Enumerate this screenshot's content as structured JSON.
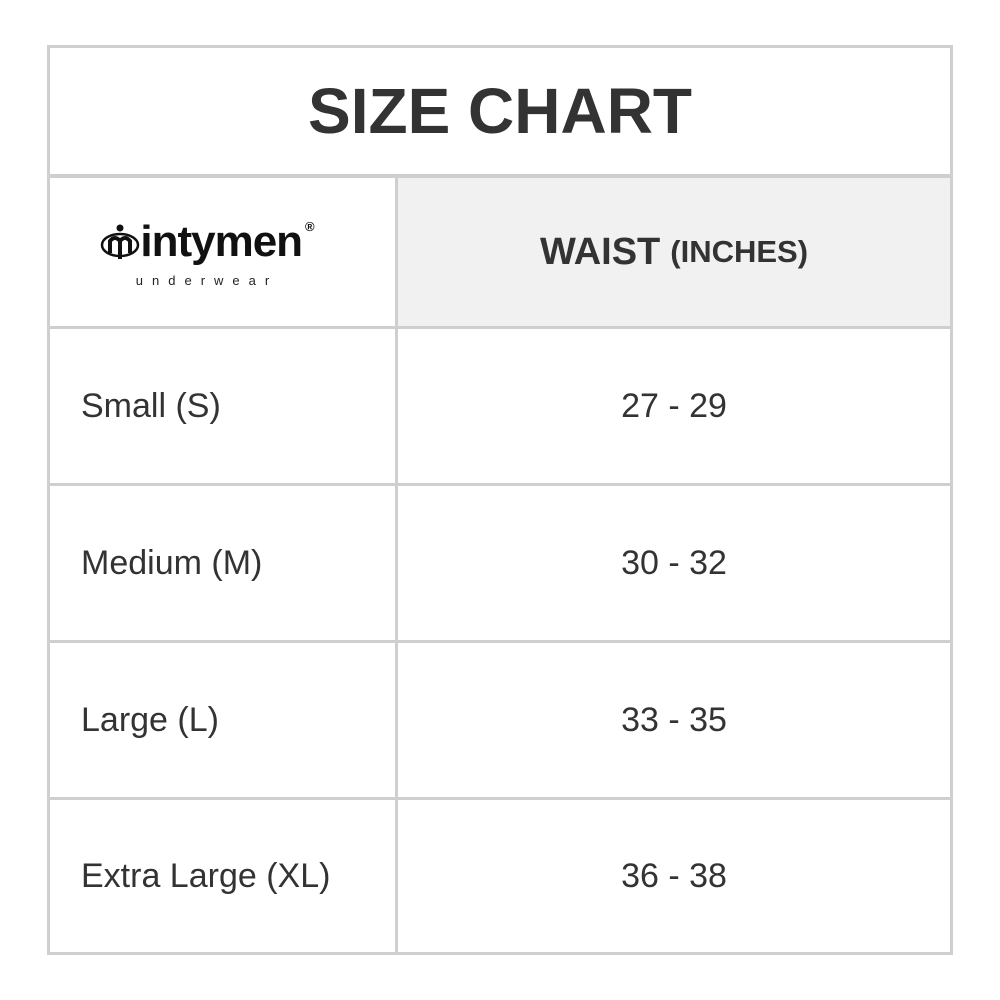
{
  "title": "SIZE CHART",
  "logo": {
    "brand": "intymen",
    "tagline": "underwear",
    "registered": "®"
  },
  "header": {
    "column": "WAIST",
    "unit": "(INCHES)"
  },
  "rows": [
    {
      "size": "Small (S)",
      "waist": "27 - 29"
    },
    {
      "size": "Medium (M)",
      "waist": "30 - 32"
    },
    {
      "size": "Large (L)",
      "waist": "33 - 35"
    },
    {
      "size": "Extra Large (XL)",
      "waist": "36 - 38"
    }
  ],
  "colors": {
    "border": "#cfcfcf",
    "header_bg": "#f1f1f1",
    "text": "#333333"
  }
}
